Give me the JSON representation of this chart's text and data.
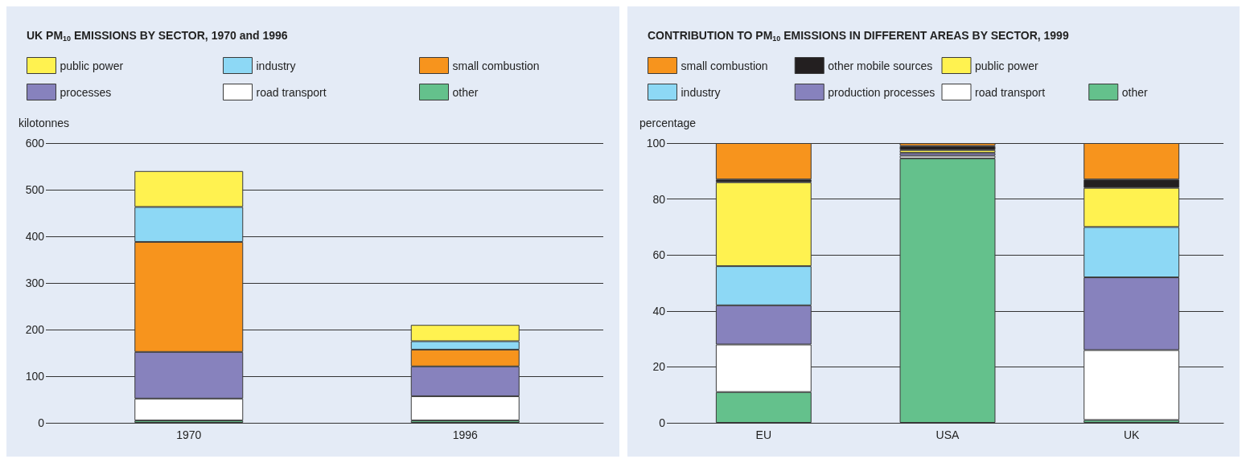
{
  "chart_data": [
    {
      "type": "bar",
      "title": "UK PM$_{10}$ EMISSIONS BY SECTOR, 1970 and 1996",
      "ylabel": "kilotonnes",
      "categories": [
        "1970",
        "1996"
      ],
      "stacked": true,
      "ylim": [
        0,
        600
      ],
      "yticks": [
        0,
        100,
        200,
        300,
        400,
        500,
        600
      ],
      "grid": "y",
      "legend": "top left",
      "series": [
        {
          "name": "other",
          "color": "#64c18c",
          "values": [
            5,
            5
          ]
        },
        {
          "name": "road transport",
          "color": "#ffffff",
          "values": [
            47,
            52
          ]
        },
        {
          "name": "processes",
          "color": "#8782bd",
          "values": [
            100,
            64
          ]
        },
        {
          "name": "small combustion",
          "color": "#f7941d",
          "values": [
            236,
            36
          ]
        },
        {
          "name": "industry",
          "color": "#8dd8f5",
          "values": [
            75,
            18
          ]
        },
        {
          "name": "public power",
          "color": "#fff250",
          "values": [
            77,
            35
          ]
        }
      ]
    },
    {
      "type": "bar",
      "title": "CONTRIBUTION TO PM$_{10}$ EMISSIONS IN DIFFERENT AREAS BY SECTOR, 1999",
      "ylabel": "percentage",
      "categories": [
        "EU",
        "USA",
        "UK"
      ],
      "stacked": true,
      "ylim": [
        0,
        100
      ],
      "yticks": [
        0,
        20,
        40,
        60,
        80,
        100
      ],
      "grid": "y",
      "legend": "top left",
      "series": [
        {
          "name": "other",
          "color": "#64c18c",
          "values": [
            11,
            94.5,
            1
          ]
        },
        {
          "name": "road transport",
          "color": "#ffffff",
          "values": [
            17,
            1,
            25
          ]
        },
        {
          "name": "production processes",
          "color": "#8782bd",
          "values": [
            14,
            1,
            26
          ]
        },
        {
          "name": "industry",
          "color": "#8dd8f5",
          "values": [
            14,
            null,
            18
          ]
        },
        {
          "name": "public power",
          "color": "#fff250",
          "values": [
            30,
            1,
            14
          ]
        },
        {
          "name": "other mobile sources",
          "color": "#231f20",
          "values": [
            1,
            1.5,
            3
          ]
        },
        {
          "name": "small combustion",
          "color": "#f7941d",
          "values": [
            13,
            1,
            13
          ]
        }
      ]
    }
  ]
}
